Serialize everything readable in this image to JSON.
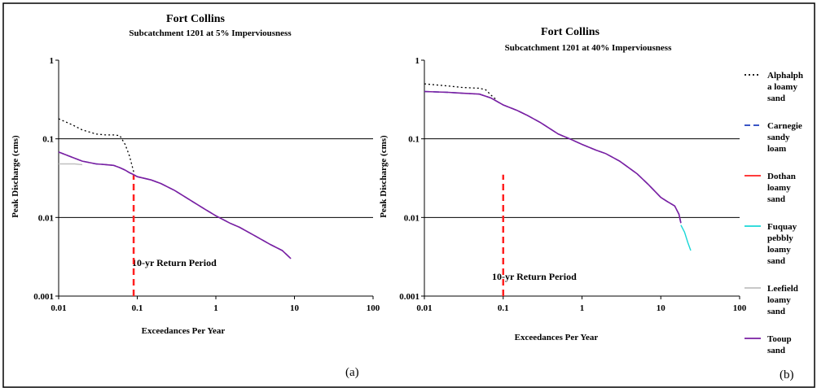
{
  "figure": {
    "panel_labels": [
      "(a)",
      "(b)"
    ],
    "legend": {
      "entries": [
        {
          "lines": [
            "Alphalph",
            "a loamy",
            "sand"
          ],
          "color": "#000000",
          "dash": "dots",
          "key": "alphalpha"
        },
        {
          "lines": [
            "Carnegie",
            "sandy",
            "loam"
          ],
          "color": "#1f3fbf",
          "dash": "dash",
          "key": "carnegie"
        },
        {
          "lines": [
            "Dothan",
            "loamy",
            "sand"
          ],
          "color": "#ff2020",
          "dash": "solid",
          "key": "dothan"
        },
        {
          "lines": [
            "Fuquay",
            "pebbly",
            "loamy",
            "sand"
          ],
          "color": "#19d7d7",
          "dash": "solid",
          "key": "fuquay"
        },
        {
          "lines": [
            "Leefield",
            "loamy",
            "sand"
          ],
          "color": "#c0c0c0",
          "dash": "solid",
          "key": "leefield"
        },
        {
          "lines": [
            "Tooup",
            "sand"
          ],
          "color": "#7a1fa2",
          "dash": "solid",
          "key": "tooup"
        }
      ]
    }
  },
  "chart_data": [
    {
      "type": "line",
      "title": "Fort Collins",
      "subtitle": "Subcatchment 1201 at 5% Imperviousness",
      "xlabel": "Exceedances Per Year",
      "ylabel": "Peak Discharge (cms)",
      "xscale": "log",
      "yscale": "log",
      "xlim": [
        0.01,
        100
      ],
      "ylim": [
        0.001,
        1
      ],
      "xticks": [
        "0.01",
        "0.1",
        "1",
        "10",
        "100"
      ],
      "yticks": [
        "0.001",
        "0.01",
        "0.1",
        "1"
      ],
      "gridlines_y": [
        0.01,
        0.1
      ],
      "annotation": {
        "text": "10-yr Return Period",
        "x": 0.09
      },
      "series": [
        {
          "key": "alphalpha",
          "x": [
            0.01,
            0.015,
            0.02,
            0.03,
            0.04,
            0.05,
            0.06,
            0.07,
            0.08,
            0.09
          ],
          "y": [
            0.18,
            0.15,
            0.13,
            0.115,
            0.112,
            0.112,
            0.11,
            0.085,
            0.06,
            0.038
          ]
        },
        {
          "key": "leefield",
          "x": [
            0.01,
            0.013,
            0.016,
            0.02
          ],
          "y": [
            0.048,
            0.048,
            0.048,
            0.047
          ]
        },
        {
          "key": "carnegie",
          "x": [
            0.01,
            0.015,
            0.02,
            0.03,
            0.04,
            0.05,
            0.06,
            0.07,
            0.08,
            0.09,
            0.1,
            0.15,
            0.2,
            0.3,
            0.5,
            0.7,
            1,
            1.5,
            2,
            3,
            5,
            7,
            9
          ],
          "y": [
            0.068,
            0.058,
            0.052,
            0.048,
            0.047,
            0.046,
            0.043,
            0.04,
            0.037,
            0.035,
            0.033,
            0.03,
            0.027,
            0.022,
            0.016,
            0.013,
            0.0105,
            0.0085,
            0.0075,
            0.006,
            0.0045,
            0.0038,
            0.003
          ]
        },
        {
          "key": "tooup",
          "x": [
            0.01,
            0.015,
            0.02,
            0.03,
            0.04,
            0.05,
            0.06,
            0.07,
            0.08,
            0.09,
            0.1,
            0.15,
            0.2,
            0.3,
            0.5,
            0.7,
            1,
            1.5,
            2,
            3,
            5,
            7,
            9
          ],
          "y": [
            0.068,
            0.058,
            0.052,
            0.048,
            0.047,
            0.046,
            0.043,
            0.04,
            0.037,
            0.035,
            0.033,
            0.03,
            0.027,
            0.022,
            0.016,
            0.013,
            0.0105,
            0.0085,
            0.0075,
            0.006,
            0.0045,
            0.0038,
            0.003
          ]
        }
      ]
    },
    {
      "type": "line",
      "title": "Fort Collins",
      "subtitle": "Subcatchment 1201 at 40% Imperviousness",
      "xlabel": "Exceedances Per Year",
      "ylabel": "Peak Discharge (cms)",
      "xscale": "log",
      "yscale": "log",
      "xlim": [
        0.01,
        100
      ],
      "ylim": [
        0.001,
        1
      ],
      "xticks": [
        "0.01",
        "0.1",
        "1",
        "10",
        "100"
      ],
      "yticks": [
        "0.001",
        "0.01",
        "0.1",
        "1"
      ],
      "gridlines_y": [
        0.01,
        0.1
      ],
      "annotation": {
        "text": "10-yr Return Period",
        "x": 0.1
      },
      "series": [
        {
          "key": "alphalpha",
          "x": [
            0.01,
            0.02,
            0.03,
            0.05,
            0.06,
            0.07,
            0.08
          ],
          "y": [
            0.5,
            0.47,
            0.45,
            0.44,
            0.42,
            0.36,
            0.32
          ]
        },
        {
          "key": "fuquay",
          "x": [
            18,
            20,
            22,
            24
          ],
          "y": [
            0.008,
            0.0065,
            0.0048,
            0.0038
          ]
        },
        {
          "key": "carnegie",
          "x": [
            0.01,
            0.02,
            0.03,
            0.05,
            0.07,
            0.1,
            0.15,
            0.2,
            0.3,
            0.5,
            0.7,
            1,
            1.5,
            2,
            3,
            5,
            7,
            10,
            12,
            15,
            17,
            18
          ],
          "y": [
            0.4,
            0.39,
            0.38,
            0.37,
            0.33,
            0.27,
            0.23,
            0.2,
            0.16,
            0.115,
            0.1,
            0.085,
            0.072,
            0.065,
            0.052,
            0.036,
            0.026,
            0.018,
            0.016,
            0.014,
            0.011,
            0.0085
          ]
        },
        {
          "key": "tooup",
          "x": [
            0.01,
            0.02,
            0.03,
            0.05,
            0.07,
            0.1,
            0.15,
            0.2,
            0.3,
            0.5,
            0.7,
            1,
            1.5,
            2,
            3,
            5,
            7,
            10,
            12,
            15,
            17,
            18
          ],
          "y": [
            0.4,
            0.39,
            0.38,
            0.37,
            0.33,
            0.27,
            0.23,
            0.2,
            0.16,
            0.115,
            0.1,
            0.085,
            0.072,
            0.065,
            0.052,
            0.036,
            0.026,
            0.018,
            0.016,
            0.014,
            0.011,
            0.0085
          ]
        }
      ]
    }
  ]
}
